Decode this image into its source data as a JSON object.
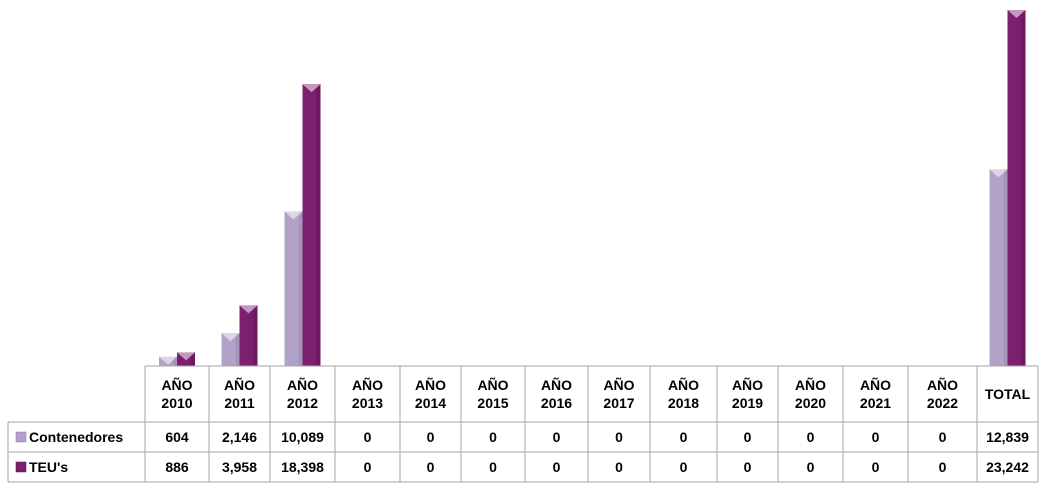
{
  "colors": {
    "contenedores": "#b3a2c7",
    "contenedores_dark": "#8e7aa8",
    "teus": "#7b1f6e",
    "teus_dark": "#4e1246",
    "grid": "#a6a6a6",
    "background": "#ffffff"
  },
  "chart_data": {
    "type": "bar",
    "title": "",
    "xlabel": "",
    "ylabel": "",
    "categories": [
      [
        "AÑO",
        "2010"
      ],
      [
        "AÑO",
        "2011"
      ],
      [
        "AÑO",
        "2012"
      ],
      [
        "AÑO",
        "2013"
      ],
      [
        "AÑO",
        "2014"
      ],
      [
        "AÑO",
        "2015"
      ],
      [
        "AÑO",
        "2016"
      ],
      [
        "AÑO",
        "2017"
      ],
      [
        "AÑO",
        "2018"
      ],
      [
        "AÑO",
        "2019"
      ],
      [
        "AÑO",
        "2020"
      ],
      [
        "AÑO",
        "2021"
      ],
      [
        "AÑO",
        "2022"
      ],
      [
        "TOTAL"
      ]
    ],
    "series": [
      {
        "name": "Contenedores",
        "values": [
          604,
          2146,
          10089,
          0,
          0,
          0,
          0,
          0,
          0,
          0,
          0,
          0,
          0,
          12839
        ],
        "labels": [
          "604",
          "2,146",
          "10,089",
          "0",
          "0",
          "0",
          "0",
          "0",
          "0",
          "0",
          "0",
          "0",
          "0",
          "12,839"
        ]
      },
      {
        "name": "TEU's",
        "values": [
          886,
          3958,
          18398,
          0,
          0,
          0,
          0,
          0,
          0,
          0,
          0,
          0,
          0,
          23242
        ],
        "labels": [
          "886",
          "3,958",
          "18,398",
          "0",
          "0",
          "0",
          "0",
          "0",
          "0",
          "0",
          "0",
          "0",
          "0",
          "23,242"
        ]
      }
    ],
    "ylim": [
      0,
      23242
    ],
    "grid": false,
    "legend": "data-table"
  }
}
